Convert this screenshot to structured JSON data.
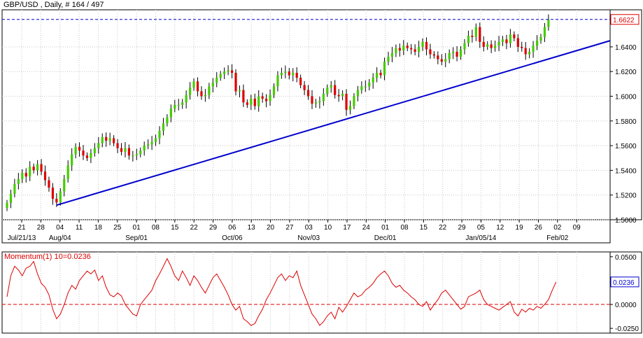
{
  "chart_data": [
    {
      "type": "candlestick",
      "title": "GBP/USD , Daily, # 164 / 497",
      "ylim": [
        1.5,
        1.67
      ],
      "y_ticks": [
        "1.5000",
        "1.5200",
        "1.5400",
        "1.5600",
        "1.5800",
        "1.6000",
        "1.6200",
        "1.6400"
      ],
      "last_price": "1.6622",
      "x_ticks": [
        "21",
        "28",
        "04",
        "11",
        "18",
        "25",
        "01",
        "08",
        "15",
        "22",
        "29",
        "06",
        "13",
        "20",
        "27",
        "03",
        "10",
        "17",
        "24",
        "01",
        "08",
        "15",
        "22",
        "29",
        "05",
        "12",
        "19",
        "26",
        "02",
        "09"
      ],
      "month_labels": [
        "Jul/21/13",
        "Aug/04",
        "Sep/01",
        "Oct/06",
        "Nov/03",
        "Dec/01",
        "Jan/05/14",
        "Feb/02"
      ],
      "up_color": "#44cc00",
      "down_color": "#dd0000",
      "close_series": [
        1.5135,
        1.521,
        1.529,
        1.533,
        1.538,
        1.535,
        1.543,
        1.54,
        1.545,
        1.539,
        1.532,
        1.526,
        1.517,
        1.514,
        1.523,
        1.533,
        1.544,
        1.553,
        1.559,
        1.556,
        1.552,
        1.55,
        1.554,
        1.558,
        1.562,
        1.567,
        1.564,
        1.566,
        1.562,
        1.558,
        1.555,
        1.558,
        1.552,
        1.552,
        1.553,
        1.556,
        1.56,
        1.561,
        1.563,
        1.566,
        1.572,
        1.578,
        1.583,
        1.59,
        1.593,
        1.593,
        1.595,
        1.601,
        1.607,
        1.612,
        1.604,
        1.6,
        1.601,
        1.608,
        1.611,
        1.615,
        1.618,
        1.62,
        1.621,
        1.619,
        1.604,
        1.605,
        1.595,
        1.593,
        1.598,
        1.592,
        1.6,
        1.598,
        1.596,
        1.601,
        1.608,
        1.617,
        1.619,
        1.62,
        1.617,
        1.619,
        1.615,
        1.609,
        1.605,
        1.6,
        1.594,
        1.595,
        1.596,
        1.602,
        1.607,
        1.609,
        1.601,
        1.6,
        1.602,
        1.589,
        1.592,
        1.6,
        1.605,
        1.608,
        1.608,
        1.611,
        1.615,
        1.619,
        1.617,
        1.628,
        1.632,
        1.635,
        1.639,
        1.637,
        1.641,
        1.639,
        1.638,
        1.636,
        1.64,
        1.644,
        1.638,
        1.634,
        1.633,
        1.63,
        1.628,
        1.63,
        1.635,
        1.636,
        1.632,
        1.638,
        1.643,
        1.649,
        1.648,
        1.656,
        1.644,
        1.64,
        1.642,
        1.639,
        1.641,
        1.644,
        1.646,
        1.643,
        1.65,
        1.647,
        1.64,
        1.639,
        1.634,
        1.636,
        1.641,
        1.645,
        1.648,
        1.656,
        1.6622
      ],
      "trendline": {
        "from_index": 13,
        "from_value": 1.5118,
        "to_value": 1.645
      },
      "resistance_level": 1.6622
    },
    {
      "type": "line",
      "title": "Momentum(1) 10=0.0236",
      "series": [
        {
          "values": [
            0.008,
            0.03,
            0.04,
            0.036,
            0.03,
            0.038,
            0.04,
            0.045,
            0.032,
            0.022,
            0.018,
            0.01,
            -0.005,
            -0.015,
            -0.01,
            0.0,
            0.012,
            0.02,
            0.016,
            0.025,
            0.03,
            0.035,
            0.032,
            0.036,
            0.025,
            0.03,
            0.018,
            0.01,
            0.008,
            0.012,
            0.009,
            0.0,
            -0.005,
            -0.01,
            -0.012,
            0.0,
            0.005,
            0.01,
            0.015,
            0.025,
            0.032,
            0.04,
            0.048,
            0.04,
            0.03,
            0.025,
            0.035,
            0.028,
            0.02,
            0.03,
            0.025,
            0.018,
            0.012,
            0.02,
            0.028,
            0.032,
            0.025,
            0.018,
            0.01,
            0.0,
            -0.006,
            -0.002,
            -0.015,
            -0.018,
            -0.022,
            -0.02,
            -0.012,
            -0.005,
            0.005,
            0.012,
            0.02,
            0.028,
            0.032,
            0.025,
            0.03,
            0.028,
            0.035,
            0.02,
            0.01,
            0.0,
            -0.01,
            -0.015,
            -0.022,
            -0.018,
            -0.012,
            -0.008,
            -0.015,
            -0.003,
            -0.008,
            -0.002,
            0.005,
            0.012,
            0.008,
            0.01,
            0.015,
            0.018,
            0.022,
            0.028,
            0.032,
            0.035,
            0.03,
            0.022,
            0.018,
            0.02,
            0.015,
            0.012,
            0.008,
            0.005,
            0.0,
            -0.002,
            0.003,
            -0.006,
            0.0,
            0.005,
            0.012,
            0.015,
            0.01,
            0.005,
            0.0,
            -0.005,
            -0.002,
            0.008,
            0.01,
            0.012,
            0.015,
            0.005,
            0.0,
            -0.002,
            -0.004,
            -0.006,
            -0.003,
            0.0,
            0.003,
            -0.008,
            -0.012,
            -0.005,
            -0.008,
            -0.004,
            -0.006,
            -0.002,
            -0.004,
            0.0,
            0.005,
            0.015,
            0.0236
          ]
        }
      ],
      "ylim": [
        -0.03,
        0.055
      ],
      "y_ticks": [
        "0.0500",
        "0.0250",
        "0.0000",
        "-0.0250"
      ],
      "last_value": "0.0236",
      "zero_line": 0
    }
  ]
}
